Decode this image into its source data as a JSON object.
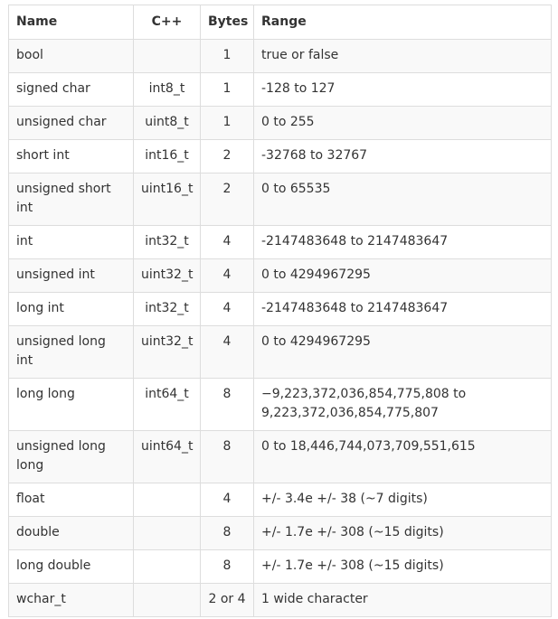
{
  "table": {
    "headers": {
      "name": "Name",
      "cpp": "C++",
      "bytes": "Bytes",
      "range": "Range"
    },
    "rows": [
      {
        "name": "bool",
        "cpp": "",
        "bytes": "1",
        "range": "true or false"
      },
      {
        "name": "signed char",
        "cpp": "int8_t",
        "bytes": "1",
        "range": "-128 to 127"
      },
      {
        "name": "unsigned char",
        "cpp": "uint8_t",
        "bytes": "1",
        "range": "0 to 255"
      },
      {
        "name": "short int",
        "cpp": "int16_t",
        "bytes": "2",
        "range": "-32768 to 32767"
      },
      {
        "name": "unsigned short int",
        "cpp": "uint16_t",
        "bytes": "2",
        "range": "0 to 65535"
      },
      {
        "name": "int",
        "cpp": "int32_t",
        "bytes": "4",
        "range": "-2147483648 to 2147483647"
      },
      {
        "name": "unsigned int",
        "cpp": "uint32_t",
        "bytes": "4",
        "range": "0 to 4294967295"
      },
      {
        "name": "long int",
        "cpp": "int32_t",
        "bytes": "4",
        "range": "-2147483648 to 2147483647"
      },
      {
        "name": "unsigned long int",
        "cpp": "uint32_t",
        "bytes": "4",
        "range": "0 to 4294967295"
      },
      {
        "name": "long long",
        "cpp": "int64_t",
        "bytes": "8",
        "range": "−9,223,372,036,854,775,808 to 9,223,372,036,854,775,807"
      },
      {
        "name": "unsigned long long",
        "cpp": "uint64_t",
        "bytes": "8",
        "range": "0 to 18,446,744,073,709,551,615"
      },
      {
        "name": "float",
        "cpp": "",
        "bytes": "4",
        "range": "+/- 3.4e +/- 38 (~7 digits)"
      },
      {
        "name": "double",
        "cpp": "",
        "bytes": "8",
        "range": "+/- 1.7e +/- 308 (~15 digits)"
      },
      {
        "name": "long double",
        "cpp": "",
        "bytes": "8",
        "range": "+/- 1.7e +/- 308 (~15 digits)"
      },
      {
        "name": "wchar_t",
        "cpp": "",
        "bytes": "2 or 4",
        "range": "1 wide character"
      }
    ]
  }
}
